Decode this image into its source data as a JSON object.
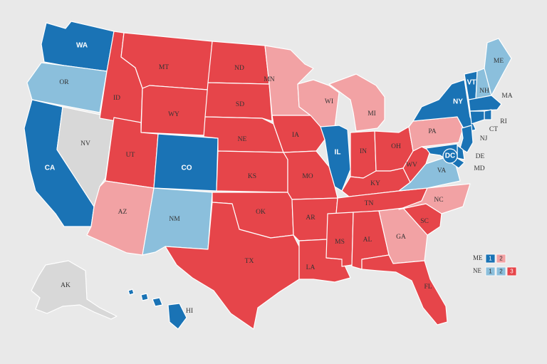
{
  "colors": {
    "safe_dem": "#1a73b5",
    "lean_dem": "#8bbfdc",
    "tossup": "#d8d8d8",
    "lean_rep": "#f2a2a4",
    "safe_rep": "#e6454a",
    "background": "#e9e9e9"
  },
  "states": [
    {
      "abbr": "WA",
      "rating": "safe_dem"
    },
    {
      "abbr": "OR",
      "rating": "lean_dem"
    },
    {
      "abbr": "CA",
      "rating": "safe_dem"
    },
    {
      "abbr": "NV",
      "rating": "tossup"
    },
    {
      "abbr": "ID",
      "rating": "safe_rep"
    },
    {
      "abbr": "MT",
      "rating": "safe_rep"
    },
    {
      "abbr": "WY",
      "rating": "safe_rep"
    },
    {
      "abbr": "UT",
      "rating": "safe_rep"
    },
    {
      "abbr": "AZ",
      "rating": "lean_rep"
    },
    {
      "abbr": "CO",
      "rating": "safe_dem"
    },
    {
      "abbr": "NM",
      "rating": "lean_dem"
    },
    {
      "abbr": "ND",
      "rating": "safe_rep"
    },
    {
      "abbr": "SD",
      "rating": "safe_rep"
    },
    {
      "abbr": "NE",
      "rating": "safe_rep"
    },
    {
      "abbr": "KS",
      "rating": "safe_rep"
    },
    {
      "abbr": "OK",
      "rating": "safe_rep"
    },
    {
      "abbr": "TX",
      "rating": "safe_rep"
    },
    {
      "abbr": "MN",
      "rating": "lean_rep"
    },
    {
      "abbr": "IA",
      "rating": "safe_rep"
    },
    {
      "abbr": "MO",
      "rating": "safe_rep"
    },
    {
      "abbr": "AR",
      "rating": "safe_rep"
    },
    {
      "abbr": "LA",
      "rating": "safe_rep"
    },
    {
      "abbr": "WI",
      "rating": "lean_rep"
    },
    {
      "abbr": "IL",
      "rating": "safe_dem"
    },
    {
      "abbr": "MI",
      "rating": "lean_rep"
    },
    {
      "abbr": "IN",
      "rating": "safe_rep"
    },
    {
      "abbr": "OH",
      "rating": "safe_rep"
    },
    {
      "abbr": "KY",
      "rating": "safe_rep"
    },
    {
      "abbr": "TN",
      "rating": "safe_rep"
    },
    {
      "abbr": "MS",
      "rating": "safe_rep"
    },
    {
      "abbr": "AL",
      "rating": "safe_rep"
    },
    {
      "abbr": "GA",
      "rating": "lean_rep"
    },
    {
      "abbr": "FL",
      "rating": "safe_rep"
    },
    {
      "abbr": "SC",
      "rating": "safe_rep"
    },
    {
      "abbr": "NC",
      "rating": "lean_rep"
    },
    {
      "abbr": "VA",
      "rating": "lean_dem"
    },
    {
      "abbr": "WV",
      "rating": "safe_rep"
    },
    {
      "abbr": "PA",
      "rating": "lean_rep"
    },
    {
      "abbr": "NY",
      "rating": "safe_dem"
    },
    {
      "abbr": "VT",
      "rating": "safe_dem"
    },
    {
      "abbr": "NH",
      "rating": "lean_dem"
    },
    {
      "abbr": "ME",
      "rating": "lean_dem"
    },
    {
      "abbr": "MA",
      "rating": "safe_dem"
    },
    {
      "abbr": "RI",
      "rating": "safe_dem"
    },
    {
      "abbr": "CT",
      "rating": "safe_dem"
    },
    {
      "abbr": "NJ",
      "rating": "safe_dem"
    },
    {
      "abbr": "DE",
      "rating": "safe_dem"
    },
    {
      "abbr": "MD",
      "rating": "safe_dem"
    },
    {
      "abbr": "DC",
      "rating": "safe_dem"
    },
    {
      "abbr": "AK",
      "rating": "tossup"
    },
    {
      "abbr": "HI",
      "rating": "safe_dem"
    }
  ],
  "legend": {
    "rows": [
      {
        "label": "ME",
        "boxes": [
          {
            "num": "1",
            "rating": "safe_dem"
          },
          {
            "num": "2",
            "rating": "lean_rep"
          }
        ]
      },
      {
        "label": "NE",
        "boxes": [
          {
            "num": "1",
            "rating": "lean_dem"
          },
          {
            "num": "2",
            "rating": "lean_dem"
          },
          {
            "num": "3",
            "rating": "safe_rep"
          }
        ]
      }
    ]
  }
}
